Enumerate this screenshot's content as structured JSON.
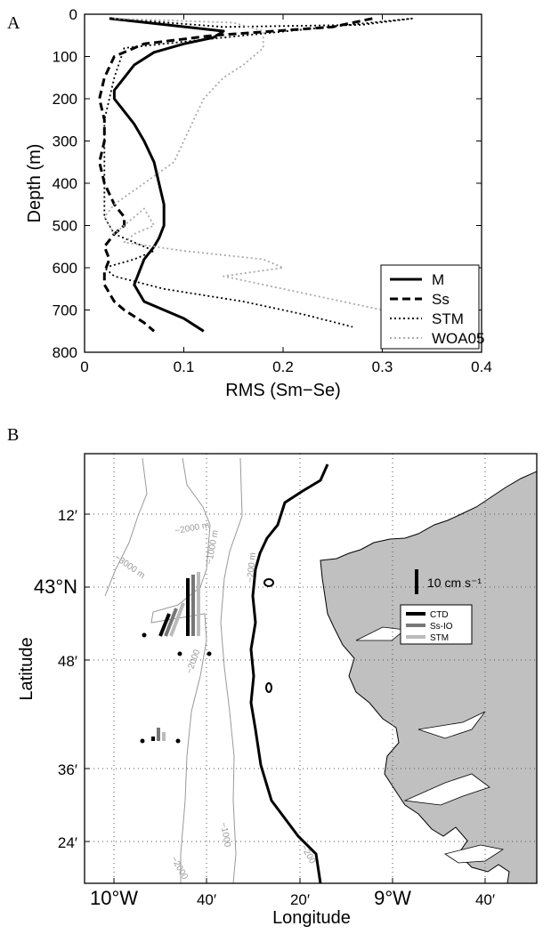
{
  "chart_data": [
    {
      "type": "line",
      "panel_label": "A",
      "xlabel": "RMS (Sm−Se)",
      "ylabel": "Depth (m)",
      "xlim": [
        0,
        0.4
      ],
      "ylim": [
        800,
        0
      ],
      "x_ticks": [
        "0",
        "0.1",
        "0.2",
        "0.3",
        "0.4"
      ],
      "y_ticks": [
        "0",
        "100",
        "200",
        "300",
        "400",
        "500",
        "600",
        "700",
        "800"
      ],
      "legend_position": "bottom-right",
      "series": [
        {
          "name": "M",
          "style": "solid",
          "color": "#000000",
          "x": [
            0.025,
            0.14,
            0.13,
            0.1,
            0.07,
            0.05,
            0.04,
            0.03,
            0.03,
            0.04,
            0.05,
            0.06,
            0.07,
            0.075,
            0.08,
            0.08,
            0.075,
            0.07,
            0.06,
            0.055,
            0.05,
            0.055,
            0.06,
            0.08,
            0.1,
            0.12
          ],
          "y": [
            10,
            40,
            55,
            70,
            90,
            120,
            150,
            180,
            200,
            230,
            260,
            300,
            350,
            400,
            450,
            500,
            530,
            550,
            580,
            610,
            640,
            660,
            680,
            700,
            720,
            750
          ]
        },
        {
          "name": "Ss",
          "style": "dashed",
          "color": "#000000",
          "x": [
            0.29,
            0.25,
            0.13,
            0.06,
            0.03,
            0.02,
            0.015,
            0.02,
            0.02,
            0.015,
            0.02,
            0.03,
            0.04,
            0.04,
            0.03,
            0.02,
            0.025,
            0.02,
            0.02,
            0.03,
            0.04,
            0.06,
            0.07
          ],
          "y": [
            10,
            30,
            50,
            70,
            100,
            150,
            200,
            250,
            300,
            350,
            400,
            450,
            480,
            500,
            520,
            550,
            580,
            610,
            640,
            680,
            700,
            730,
            750
          ]
        },
        {
          "name": "STM",
          "style": "dotted",
          "color": "#000000",
          "x": [
            0.03,
            0.14,
            0.28,
            0.33,
            0.12,
            0.04,
            0.03,
            0.02,
            0.02,
            0.02,
            0.02,
            0.03,
            0.05,
            0.07,
            0.05,
            0.02,
            0.03,
            0.08,
            0.16,
            0.22,
            0.27
          ],
          "y": [
            10,
            30,
            25,
            10,
            60,
            80,
            150,
            250,
            350,
            420,
            480,
            520,
            540,
            560,
            580,
            600,
            620,
            650,
            680,
            710,
            740
          ]
        },
        {
          "name": "WOA05",
          "style": "dotted",
          "color": "#aaaaaa",
          "x": [
            0.03,
            0.15,
            0.18,
            0.18,
            0.16,
            0.14,
            0.12,
            0.11,
            0.1,
            0.09,
            0.06,
            0.03,
            0.02,
            0.03,
            0.06,
            0.07,
            0.05,
            0.04,
            0.1,
            0.18,
            0.2,
            0.14,
            0.18,
            0.24,
            0.3
          ],
          "y": [
            10,
            20,
            40,
            80,
            120,
            150,
            200,
            250,
            300,
            350,
            400,
            450,
            480,
            520,
            460,
            500,
            520,
            540,
            560,
            580,
            600,
            620,
            640,
            670,
            700
          ]
        }
      ]
    },
    {
      "type": "map",
      "panel_label": "B",
      "xlabel": "Longitude",
      "ylabel": "Latitude",
      "lon_ticks": [
        "10°W",
        "40′",
        "20′",
        "9°W",
        "40′"
      ],
      "lat_ticks": [
        "12′",
        "43°N",
        "48′",
        "36′",
        "24′"
      ],
      "contour_labels": [
        "−2000 m",
        "−3000 m",
        "−1000 m",
        "−200 m",
        "−2000",
        "−1000",
        "−200"
      ],
      "scale_label": "10 cm s⁻¹",
      "legend": [
        {
          "name": "CTD",
          "color": "#000000"
        },
        {
          "name": "Ss-IO",
          "color": "#777777"
        },
        {
          "name": "STM",
          "color": "#bbbbbb"
        }
      ],
      "land_color": "#c0c0c0"
    }
  ]
}
